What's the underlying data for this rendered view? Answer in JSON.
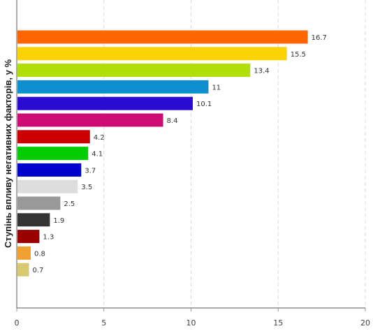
{
  "chart_data": {
    "type": "bar",
    "orientation": "horizontal",
    "title": "",
    "xlabel": "",
    "ylabel": "Ступінь впливу негативних факторів, у %",
    "xlim": [
      0,
      20
    ],
    "x_ticks": [
      "0",
      "5",
      "10",
      "15",
      "20"
    ],
    "grid": "vertical dashed",
    "legend": "none",
    "bars": [
      {
        "value": 16.7,
        "label": "16.7",
        "color": "#ff6600"
      },
      {
        "value": 15.5,
        "label": "15.5",
        "color": "#fcd202"
      },
      {
        "value": 13.4,
        "label": "13.4",
        "color": "#b0de09"
      },
      {
        "value": 11,
        "label": "11",
        "color": "#0d8ecf"
      },
      {
        "value": 10.1,
        "label": "10.1",
        "color": "#2a0cd0"
      },
      {
        "value": 8.4,
        "label": "8.4",
        "color": "#cd0d74"
      },
      {
        "value": 4.2,
        "label": "4.2",
        "color": "#cc0000"
      },
      {
        "value": 4.1,
        "label": "4.1",
        "color": "#00cc00"
      },
      {
        "value": 3.7,
        "label": "3.7",
        "color": "#0000cc"
      },
      {
        "value": 3.5,
        "label": "3.5",
        "color": "#dddddd"
      },
      {
        "value": 2.5,
        "label": "2.5",
        "color": "#999999"
      },
      {
        "value": 1.9,
        "label": "1.9",
        "color": "#333333"
      },
      {
        "value": 1.3,
        "label": "1.3",
        "color": "#990000"
      },
      {
        "value": 0.8,
        "label": "0.8",
        "color": "#f0a030"
      },
      {
        "value": 0.7,
        "label": "0.7",
        "color": "#d8c870"
      }
    ]
  }
}
